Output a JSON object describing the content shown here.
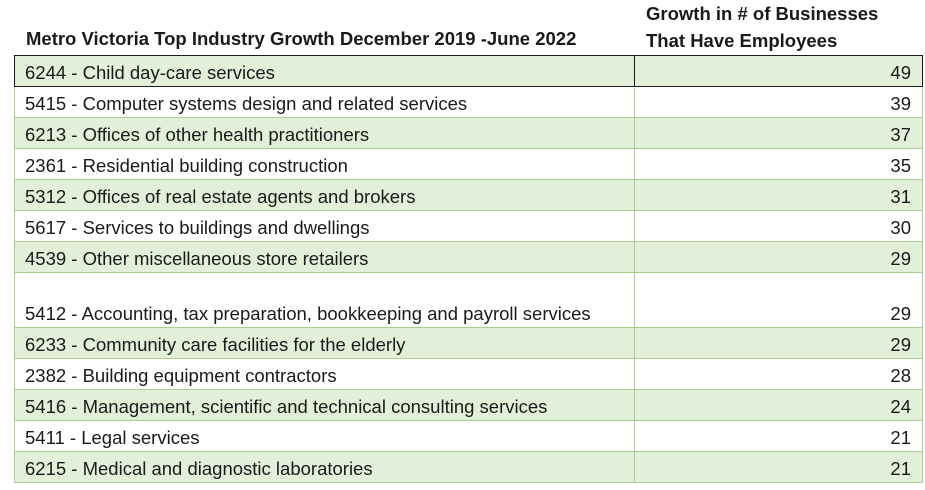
{
  "header": {
    "title": "Metro Victoria Top Industry Growth December 2019 -June 2022",
    "value_header_line1": "Growth in # of Businesses",
    "value_header_line2": "That Have Employees"
  },
  "rows": [
    {
      "industry": "6244 - Child day-care services",
      "growth": "49"
    },
    {
      "industry": "5415 - Computer systems design and related services",
      "growth": "39"
    },
    {
      "industry": "6213 - Offices of other health practitioners",
      "growth": "37"
    },
    {
      "industry": "2361 - Residential building construction",
      "growth": "35"
    },
    {
      "industry": "5312 - Offices of real estate agents and brokers",
      "growth": "31"
    },
    {
      "industry": "5617 - Services to buildings and dwellings",
      "growth": "30"
    },
    {
      "industry": "4539 - Other miscellaneous store retailers",
      "growth": "29"
    },
    {
      "industry": "5412 - Accounting, tax preparation, bookkeeping and payroll services",
      "growth": "29"
    },
    {
      "industry": "6233 - Community care facilities for the elderly",
      "growth": "29"
    },
    {
      "industry": "2382 - Building equipment contractors",
      "growth": "28"
    },
    {
      "industry": "5416 - Management, scientific and technical consulting services",
      "growth": "24"
    },
    {
      "industry": "5411 - Legal services",
      "growth": "21"
    },
    {
      "industry": "6215 - Medical and diagnostic laboratories",
      "growth": "21"
    }
  ]
}
